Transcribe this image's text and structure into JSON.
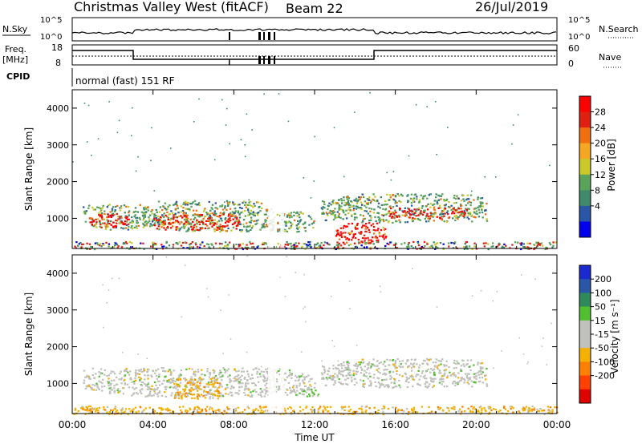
{
  "header": {
    "station": "Christmas Valley West (fitACF)",
    "beam": "Beam 22",
    "date": "26/Jul/2019"
  },
  "top_panels": {
    "nsky_label": "N.Sky",
    "nsky_ticks": [
      "10^5",
      "10^0"
    ],
    "nsearch_label": "N.Search",
    "nsearch_ticks": [
      "10^5",
      "10^0"
    ],
    "freq_label_1": "Freq.",
    "freq_label_2": "[MHz]",
    "freq_ticks": [
      "18",
      "8"
    ],
    "nave_label": "Nave",
    "nave_ticks": [
      "60",
      "0"
    ],
    "cpid_label": "CPID",
    "cpid_text": "normal (fast) 151 RF"
  },
  "colors": {
    "power_scale": [
      "#0000ee",
      "#2a56a8",
      "#3f8a6a",
      "#5aa35a",
      "#c9c92a",
      "#f5a623",
      "#f07010",
      "#e02010",
      "#ff0000"
    ],
    "velocity_scale": [
      "#e00000",
      "#ff4000",
      "#ff8000",
      "#f5b000",
      "#c0c0bc",
      "#c0c0bc",
      "#50c030",
      "#2e8a5a",
      "#2a56a8",
      "#1a2ad0"
    ]
  },
  "chart_data": [
    {
      "type": "heatmap",
      "name_key": "power",
      "xlabel": "Time UT",
      "ylabel": "Slant Range [km]",
      "colorbar_label": "Power [dB]",
      "colorbar_ticks": [
        "28",
        "24",
        "20",
        "16",
        "12",
        "8",
        "4"
      ],
      "xticks": [
        "00:00",
        "04:00",
        "08:00",
        "12:00",
        "16:00",
        "20:00",
        "00:00"
      ],
      "yticks": [
        "4000",
        "3000",
        "2000",
        "1000"
      ],
      "xlim_hours": [
        0,
        24
      ],
      "ylim_km": [
        180,
        4500
      ],
      "clim_db": [
        0,
        32
      ],
      "regions": [
        {
          "t0": 0.5,
          "t1": 4.3,
          "r0": 700,
          "r1": 1400,
          "level": "medium"
        },
        {
          "t0": 0.8,
          "t1": 2.8,
          "r0": 750,
          "r1": 1150,
          "level": "high"
        },
        {
          "t0": 4.0,
          "t1": 10.0,
          "r0": 650,
          "r1": 1500,
          "level": "medium"
        },
        {
          "t0": 4.0,
          "t1": 8.3,
          "r0": 700,
          "r1": 1150,
          "level": "high"
        },
        {
          "t0": 9.5,
          "t1": 12.0,
          "r0": 650,
          "r1": 1200,
          "level": "medium"
        },
        {
          "t0": 12.3,
          "t1": 20.5,
          "r0": 900,
          "r1": 1700,
          "level": "medium"
        },
        {
          "t0": 15.5,
          "t1": 19.5,
          "r0": 1000,
          "r1": 1300,
          "level": "high"
        },
        {
          "t0": 13.0,
          "t1": 15.5,
          "r0": 300,
          "r1": 900,
          "level": "high"
        },
        {
          "t0": 0.0,
          "t1": 24.0,
          "r0": 180,
          "r1": 380,
          "level": "mixed"
        }
      ]
    },
    {
      "type": "heatmap",
      "name_key": "velocity",
      "xlabel": "Time UT",
      "ylabel": "Slant Range [km]",
      "colorbar_label": "Velocity [m s⁻¹]",
      "colorbar_ticks": [
        "200",
        "100",
        "50",
        "15",
        "-15",
        "-50",
        "-100",
        "-200"
      ],
      "xticks": [
        "00:00",
        "04:00",
        "08:00",
        "12:00",
        "16:00",
        "20:00",
        "00:00"
      ],
      "yticks": [
        "4000",
        "3000",
        "2000",
        "1000"
      ],
      "xlim_hours": [
        0,
        24
      ],
      "ylim_km": [
        180,
        4500
      ],
      "clim_ms": [
        -250,
        250
      ],
      "regions": [
        {
          "t0": 0.5,
          "t1": 12.0,
          "r0": 650,
          "r1": 1450,
          "level": "near-zero"
        },
        {
          "t0": 5.0,
          "t1": 7.3,
          "r0": 600,
          "r1": 1200,
          "level": "negative"
        },
        {
          "t0": 11.0,
          "t1": 12.2,
          "r0": 650,
          "r1": 900,
          "level": "positive"
        },
        {
          "t0": 12.3,
          "t1": 20.5,
          "r0": 900,
          "r1": 1700,
          "level": "near-zero"
        },
        {
          "t0": 0.0,
          "t1": 24.0,
          "r0": 180,
          "r1": 400,
          "level": "negative"
        }
      ]
    }
  ]
}
